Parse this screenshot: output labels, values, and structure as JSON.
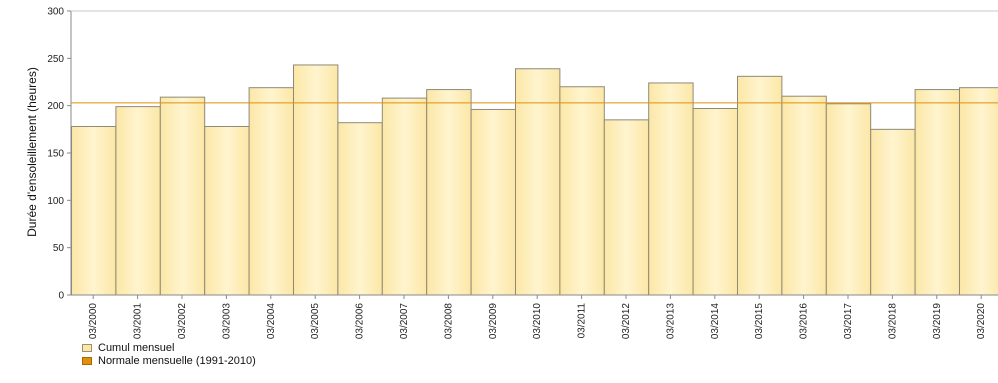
{
  "chart_data": {
    "type": "bar",
    "ylabel": "Durée d'ensoleillement (heures)",
    "xlabel": "",
    "ylim": [
      0,
      300
    ],
    "yticks": [
      0,
      50,
      100,
      150,
      200,
      250,
      300
    ],
    "categories": [
      "03/2000",
      "03/2001",
      "03/2002",
      "03/2003",
      "03/2004",
      "03/2005",
      "03/2006",
      "03/2007",
      "03/2008",
      "03/2009",
      "03/2010",
      "03/2011",
      "03/2012",
      "03/2013",
      "03/2014",
      "03/2015",
      "03/2016",
      "03/2017",
      "03/2018",
      "03/2019",
      "03/2020"
    ],
    "series": [
      {
        "name": "Cumul mensuel",
        "values": [
          178,
          199,
          209,
          178,
          219,
          243,
          182,
          208,
          217,
          196,
          239,
          220,
          185,
          224,
          197,
          231,
          210,
          202,
          175,
          217,
          219
        ]
      }
    ],
    "reference_line": {
      "name": "Normale mensuelle (1991-2010)",
      "value": 203
    },
    "grid": false,
    "legend_position": "bottom-left",
    "colors": {
      "bar_fill": "#fbe7a6",
      "bar_fill_light": "#fff4cf",
      "bar_stroke": "#8f8a78",
      "normal_line": "#e0900a",
      "axis": "#888888"
    }
  },
  "legend": {
    "items": [
      {
        "label": "Cumul mensuel"
      },
      {
        "label": "Normale mensuelle (1991-2010)"
      }
    ]
  }
}
